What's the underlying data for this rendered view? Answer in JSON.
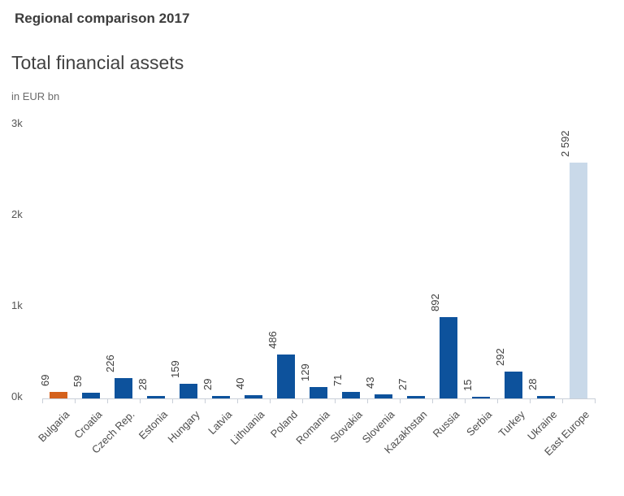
{
  "header": {
    "eyebrow": "Regional comparison 2017",
    "title": "Total financial assets",
    "unit": "in EUR bn"
  },
  "chart_data": {
    "type": "bar",
    "title": "Total financial assets",
    "subtitle": "Regional comparison 2017",
    "unit_label": "in EUR bn",
    "xlabel": "",
    "ylabel": "",
    "ylim": [
      0,
      3000
    ],
    "grid": false,
    "legend": false,
    "yticks": [
      {
        "value": 0,
        "label": "0k"
      },
      {
        "value": 1000,
        "label": "1k"
      },
      {
        "value": 2000,
        "label": "2k"
      },
      {
        "value": 3000,
        "label": "3k"
      }
    ],
    "categories": [
      "Bulgaria",
      "Croatia",
      "Czech Rep.",
      "Estonia",
      "Hungary",
      "Latvia",
      "Lithuania",
      "Poland",
      "Romania",
      "Slovakia",
      "Slovenia",
      "Kazakhstan",
      "Russia",
      "Serbia",
      "Turkey",
      "Ukraine",
      "East Europe"
    ],
    "values": [
      69,
      59,
      226,
      28,
      159,
      29,
      40,
      486,
      129,
      71,
      43,
      27,
      892,
      15,
      292,
      28,
      2592
    ],
    "value_labels": [
      "69",
      "59",
      "226",
      "28",
      "159",
      "29",
      "40",
      "486",
      "129",
      "71",
      "43",
      "27",
      "892",
      "15",
      "292",
      "28",
      "2 592"
    ],
    "bar_colors": [
      "#d4611c",
      "#0d529c",
      "#0d529c",
      "#0d529c",
      "#0d529c",
      "#0d529c",
      "#0d529c",
      "#0d529c",
      "#0d529c",
      "#0d529c",
      "#0d529c",
      "#0d529c",
      "#0d529c",
      "#0d529c",
      "#0d529c",
      "#0d529c",
      "#c9d9e9"
    ],
    "colors": {
      "highlight": "#d4611c",
      "default": "#0d529c",
      "aggregate": "#c9d9e9",
      "axis": "#c9cfd8",
      "value_text": "#3d3d3d",
      "category_text": "#4d4d4d"
    }
  }
}
